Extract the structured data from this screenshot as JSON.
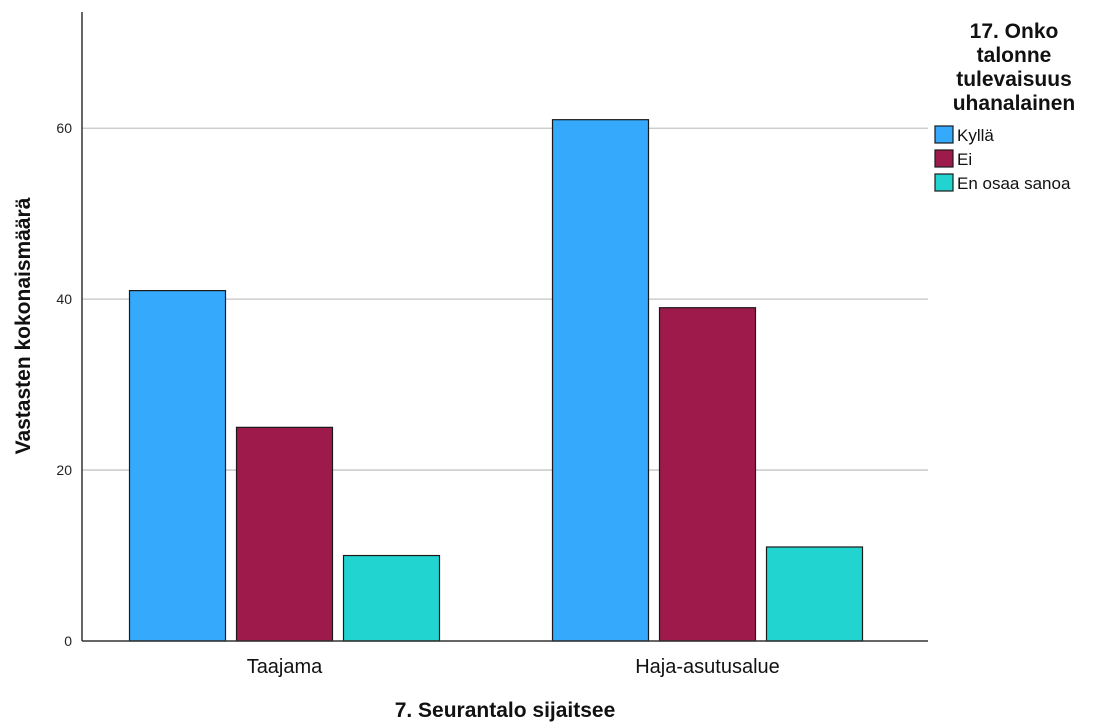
{
  "chart_data": {
    "type": "bar",
    "categories": [
      "Taajama",
      "Haja-asutusalue"
    ],
    "series": [
      {
        "name": "Kyllä",
        "color": "#35a9fb",
        "values": [
          41,
          61
        ]
      },
      {
        "name": "Ei",
        "color": "#9e1a4b",
        "values": [
          25,
          39
        ]
      },
      {
        "name": "En osaa sanoa",
        "color": "#22d4d0",
        "values": [
          10,
          11
        ]
      }
    ],
    "xlabel": "7. Seurantalo sijaitsee",
    "ylabel": "Vastasten kokonaismäärä",
    "ylim": [
      0,
      73.6
    ],
    "yticks": [
      0,
      20,
      40,
      60
    ],
    "grid": true,
    "legend": {
      "title_lines": [
        "17. Onko",
        "talonne",
        "tulevaisuus",
        "uhanalainen"
      ],
      "placement": "right"
    }
  }
}
